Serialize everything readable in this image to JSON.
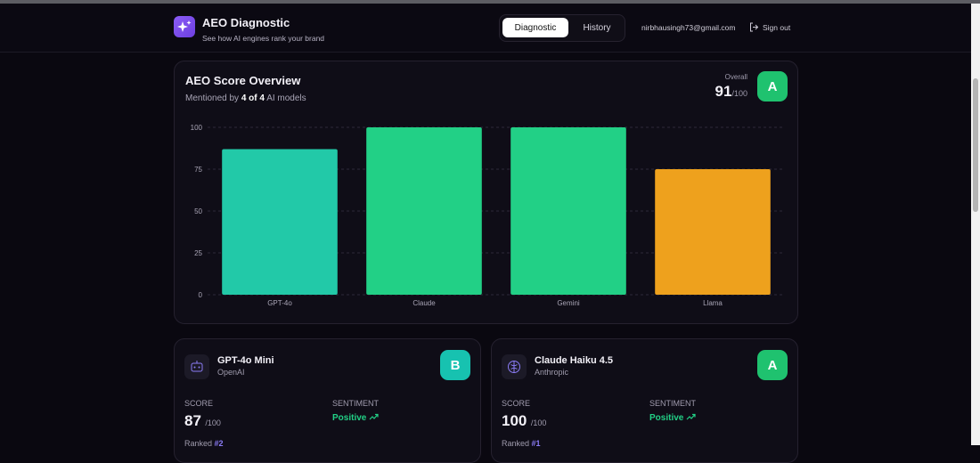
{
  "header": {
    "title": "AEO Diagnostic",
    "subtitle": "See how AI engines rank your brand",
    "tabs": [
      "Diagnostic",
      "History"
    ],
    "email": "nirbhausingh73@gmail.com",
    "sign_out": "Sign out"
  },
  "overview": {
    "title": "AEO Score Overview",
    "mentioned_prefix": "Mentioned by",
    "mentioned_count": "4 of 4",
    "mentioned_suffix": "AI models",
    "overall_label": "Overall",
    "score": "91",
    "score_suffix": "/100",
    "grade": "A"
  },
  "chart_data": {
    "type": "bar",
    "categories": [
      "GPT-4o",
      "Claude",
      "Gemini",
      "Llama"
    ],
    "values": [
      87,
      100,
      100,
      75
    ],
    "colors": [
      "#22c9a8",
      "#22d086",
      "#22d086",
      "#eea11d"
    ],
    "ylim": [
      0,
      100
    ],
    "yticks": [
      0,
      25,
      50,
      75,
      100
    ],
    "grid": true
  },
  "cards": [
    {
      "name": "GPT-4o Mini",
      "provider": "OpenAI",
      "grade": "B",
      "score_label": "SCORE",
      "score": "87",
      "score_suffix": "/100",
      "sentiment_label": "SENTIMENT",
      "sentiment": "Positive",
      "rank_label": "Ranked",
      "rank": "#2"
    },
    {
      "name": "Claude Haiku 4.5",
      "provider": "Anthropic",
      "grade": "A",
      "score_label": "SCORE",
      "score": "100",
      "score_suffix": "/100",
      "sentiment_label": "SENTIMENT",
      "sentiment": "Positive",
      "rank_label": "Ranked",
      "rank": "#1"
    }
  ]
}
